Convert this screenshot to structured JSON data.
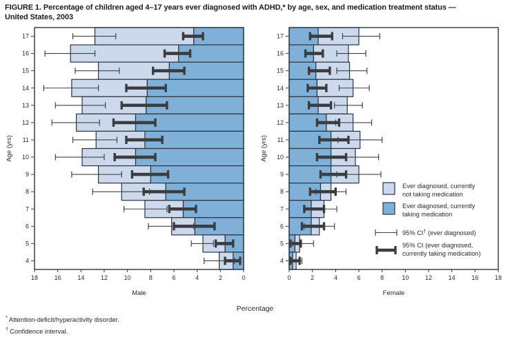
{
  "title": {
    "line1": "FIGURE 1. Percentage of children aged 4–17 years ever diagnosed with ADHD,* by age, sex, and medication treatment status —",
    "line2": "United States, 2003"
  },
  "footnotes": [
    {
      "marker": "*",
      "text": "Attention-deficit/hyperactivity disorder."
    },
    {
      "marker": "†",
      "text": "Confidence interval."
    }
  ],
  "chart_data": {
    "type": "bar",
    "orientation": "horizontal-paired",
    "title": "FIGURE 1. Percentage of children aged 4–17 years ever diagnosed with ADHD, by age, sex, and medication treatment status — United States, 2003",
    "xlabel": "Percentage",
    "ylabel": "Age (yrs)",
    "xlim": [
      0,
      18
    ],
    "x_ticks": [
      0,
      2,
      4,
      6,
      8,
      10,
      12,
      14,
      16,
      18
    ],
    "ages": [
      17,
      16,
      15,
      14,
      13,
      12,
      11,
      10,
      9,
      8,
      7,
      6,
      5,
      4
    ],
    "grid": false,
    "panels": [
      {
        "name": "Male",
        "side": "left",
        "rows": [
          {
            "age": 17,
            "ever": 12.8,
            "ever_ci": [
              11.0,
              14.7
            ],
            "taking": 4.3,
            "taking_ci": [
              3.5,
              5.2
            ]
          },
          {
            "age": 16,
            "ever": 14.9,
            "ever_ci": [
              12.8,
              17.1
            ],
            "taking": 5.6,
            "taking_ci": [
              4.6,
              6.8
            ]
          },
          {
            "age": 15,
            "ever": 12.5,
            "ever_ci": [
              10.7,
              14.5
            ],
            "taking": 6.4,
            "taking_ci": [
              5.1,
              7.8
            ]
          },
          {
            "age": 14,
            "ever": 14.8,
            "ever_ci": [
              12.5,
              17.2
            ],
            "taking": 8.3,
            "taking_ci": [
              6.7,
              10.1
            ]
          },
          {
            "age": 13,
            "ever": 13.9,
            "ever_ci": [
              11.9,
              16.2
            ],
            "taking": 8.4,
            "taking_ci": [
              6.6,
              10.5
            ]
          },
          {
            "age": 12,
            "ever": 14.4,
            "ever_ci": [
              12.4,
              16.5
            ],
            "taking": 9.3,
            "taking_ci": [
              7.6,
              11.2
            ]
          },
          {
            "age": 11,
            "ever": 12.7,
            "ever_ci": [
              10.9,
              14.7
            ],
            "taking": 8.5,
            "taking_ci": [
              7.0,
              10.1
            ]
          },
          {
            "age": 10,
            "ever": 13.9,
            "ever_ci": [
              12.0,
              16.2
            ],
            "taking": 9.3,
            "taking_ci": [
              7.6,
              11.1
            ]
          },
          {
            "age": 9,
            "ever": 12.5,
            "ever_ci": [
              10.5,
              14.8
            ],
            "taking": 8.0,
            "taking_ci": [
              6.5,
              9.6
            ]
          },
          {
            "age": 8,
            "ever": 10.5,
            "ever_ci": [
              8.1,
              13.0
            ],
            "taking": 6.7,
            "taking_ci": [
              5.1,
              8.6
            ]
          },
          {
            "age": 7,
            "ever": 8.5,
            "ever_ci": [
              6.6,
              10.3
            ],
            "taking": 5.2,
            "taking_ci": [
              4.1,
              6.4
            ]
          },
          {
            "age": 6,
            "ever": 6.2,
            "ever_ci": [
              4.3,
              8.2
            ],
            "taking": 4.2,
            "taking_ci": [
              2.5,
              6.0
            ]
          },
          {
            "age": 5,
            "ever": 3.5,
            "ever_ci": [
              2.6,
              4.5
            ],
            "taking": 1.6,
            "taking_ci": [
              0.9,
              2.4
            ]
          },
          {
            "age": 4,
            "ever": 2.1,
            "ever_ci": [
              0.8,
              3.4
            ],
            "taking": 0.9,
            "taking_ci": [
              0.3,
              1.6
            ]
          }
        ]
      },
      {
        "name": "Female",
        "side": "right",
        "rows": [
          {
            "age": 17,
            "ever": 6.0,
            "ever_ci": [
              4.6,
              7.8
            ],
            "taking": 2.5,
            "taking_ci": [
              1.8,
              3.7
            ]
          },
          {
            "age": 16,
            "ever": 5.1,
            "ever_ci": [
              4.1,
              6.6
            ],
            "taking": 2.1,
            "taking_ci": [
              1.4,
              2.9
            ]
          },
          {
            "age": 15,
            "ever": 5.2,
            "ever_ci": [
              4.1,
              6.7
            ],
            "taking": 2.3,
            "taking_ci": [
              1.7,
              3.5
            ]
          },
          {
            "age": 14,
            "ever": 5.5,
            "ever_ci": [
              4.3,
              6.9
            ],
            "taking": 2.4,
            "taking_ci": [
              1.6,
              3.2
            ]
          },
          {
            "age": 13,
            "ever": 5.0,
            "ever_ci": [
              3.9,
              6.3
            ],
            "taking": 2.5,
            "taking_ci": [
              1.7,
              3.6
            ]
          },
          {
            "age": 12,
            "ever": 5.5,
            "ever_ci": [
              4.0,
              7.1
            ],
            "taking": 3.2,
            "taking_ci": [
              2.4,
              4.3
            ]
          },
          {
            "age": 11,
            "ever": 6.1,
            "ever_ci": [
              4.2,
              8.0
            ],
            "taking": 3.6,
            "taking_ci": [
              2.6,
              5.1
            ]
          },
          {
            "age": 10,
            "ever": 5.7,
            "ever_ci": [
              3.6,
              7.7
            ],
            "taking": 3.6,
            "taking_ci": [
              2.4,
              4.9
            ]
          },
          {
            "age": 9,
            "ever": 6.0,
            "ever_ci": [
              4.1,
              7.9
            ],
            "taking": 3.6,
            "taking_ci": [
              2.7,
              4.9
            ]
          },
          {
            "age": 8,
            "ever": 3.6,
            "ever_ci": [
              2.3,
              4.9
            ],
            "taking": 2.7,
            "taking_ci": [
              1.8,
              4.0
            ]
          },
          {
            "age": 7,
            "ever": 3.0,
            "ever_ci": [
              1.9,
              4.1
            ],
            "taking": 1.9,
            "taking_ci": [
              1.3,
              3.0
            ]
          },
          {
            "age": 6,
            "ever": 2.6,
            "ever_ci": [
              1.3,
              3.9
            ],
            "taking": 1.9,
            "taking_ci": [
              1.1,
              3.0
            ]
          },
          {
            "age": 5,
            "ever": 0.9,
            "ever_ci": [
              0.3,
              2.1
            ],
            "taking": 0.5,
            "taking_ci": [
              0.1,
              1.0
            ]
          },
          {
            "age": 4,
            "ever": 0.6,
            "ever_ci": [
              0.2,
              1.1
            ],
            "taking": 0.3,
            "taking_ci": [
              0.1,
              0.9
            ]
          }
        ]
      }
    ],
    "legend": {
      "position": "inside-right-panel",
      "items": [
        {
          "type": "swatch-light",
          "lines": [
            "Ever diagnosed, currently",
            "not taking medication"
          ]
        },
        {
          "type": "swatch-medium",
          "lines": [
            "Ever diagnosed, currently",
            "taking medication"
          ]
        },
        {
          "type": "ci-thin",
          "label_pre": "95% CI",
          "label_sup": "†",
          "label_post": " (ever diagnosed)"
        },
        {
          "type": "ci-thick",
          "lines": [
            "95% CI (ever diagnosed,",
            "currently taking medication)"
          ]
        }
      ]
    },
    "colors": {
      "not_taking": "#ccd9ec",
      "taking": "#7fb1d8",
      "outline": "#2c3340",
      "ci_thin": "#3f4245",
      "ci_thick": "#3a3d40",
      "text": "#2a2a2a"
    }
  }
}
